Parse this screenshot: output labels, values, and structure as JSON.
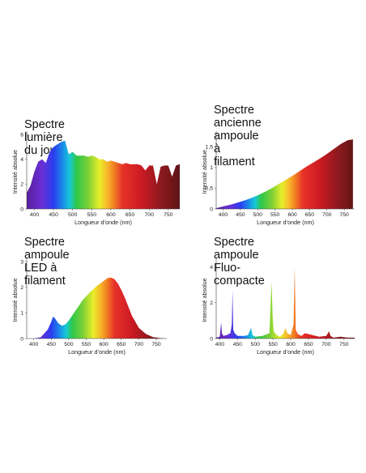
{
  "chart_data": [
    {
      "type": "area",
      "title": "Spectre lumière du jour",
      "xlabel": "Longueur d’onde (nm)",
      "ylabel": "Intensité absolue",
      "xlim": [
        380,
        780
      ],
      "ylim": [
        0,
        6
      ],
      "xticks": [
        "400",
        "450",
        "500",
        "550",
        "600",
        "650",
        "700",
        "750"
      ],
      "yticks": [
        "0",
        "2",
        "4",
        "6"
      ],
      "x": [
        380,
        390,
        400,
        410,
        420,
        430,
        440,
        450,
        460,
        470,
        480,
        490,
        500,
        510,
        520,
        530,
        540,
        550,
        560,
        570,
        580,
        590,
        600,
        610,
        620,
        630,
        640,
        650,
        660,
        670,
        680,
        690,
        700,
        710,
        720,
        730,
        740,
        750,
        760,
        770,
        780
      ],
      "values": [
        1.3,
        1.9,
        3.0,
        3.8,
        4.0,
        3.7,
        4.6,
        5.0,
        5.2,
        5.4,
        5.5,
        4.4,
        4.6,
        4.3,
        4.3,
        4.3,
        4.2,
        4.3,
        4.2,
        4.0,
        4.0,
        3.8,
        3.9,
        3.8,
        3.7,
        3.6,
        3.7,
        3.6,
        3.6,
        3.6,
        3.5,
        3.1,
        3.5,
        3.5,
        2.0,
        3.4,
        3.5,
        3.5,
        2.6,
        3.5,
        3.6
      ]
    },
    {
      "type": "area",
      "title": "Spectre ancienne ampoule\nà filament",
      "xlabel": "Longueur d’onde (nm)",
      "ylabel": "Intensité absolue",
      "xlim": [
        380,
        780
      ],
      "ylim": [
        0,
        1.8
      ],
      "xticks": [
        "400",
        "450",
        "500",
        "550",
        "600",
        "650",
        "700",
        "750"
      ],
      "yticks": [
        "0",
        "0,5",
        "1",
        "1,5"
      ],
      "x": [
        380,
        400,
        420,
        440,
        460,
        480,
        500,
        520,
        540,
        560,
        580,
        600,
        620,
        640,
        660,
        680,
        700,
        720,
        740,
        760,
        775
      ],
      "values": [
        0.02,
        0.06,
        0.1,
        0.15,
        0.2,
        0.26,
        0.33,
        0.41,
        0.5,
        0.6,
        0.7,
        0.8,
        0.91,
        1.02,
        1.12,
        1.22,
        1.33,
        1.45,
        1.57,
        1.66,
        1.68
      ]
    },
    {
      "type": "area",
      "title": "Spectre ampoule\nLED à filament",
      "xlabel": "Longueur d’onde (nm)",
      "ylabel": "Intensité absolue",
      "xlim": [
        380,
        780
      ],
      "ylim": [
        0,
        3
      ],
      "xticks": [
        "400",
        "450",
        "500",
        "550",
        "600",
        "650",
        "700",
        "750"
      ],
      "yticks": [
        "0",
        "1",
        "2",
        "3"
      ],
      "x": [
        380,
        400,
        420,
        440,
        450,
        455,
        460,
        470,
        480,
        490,
        500,
        520,
        540,
        560,
        580,
        600,
        610,
        620,
        630,
        640,
        650,
        660,
        680,
        700,
        720,
        740,
        760,
        780
      ],
      "values": [
        0,
        0,
        0.05,
        0.35,
        0.65,
        0.85,
        0.8,
        0.6,
        0.5,
        0.55,
        0.7,
        1.1,
        1.5,
        1.8,
        2.05,
        2.25,
        2.35,
        2.38,
        2.32,
        2.15,
        1.9,
        1.6,
        0.9,
        0.42,
        0.18,
        0.06,
        0.02,
        0
      ]
    },
    {
      "type": "area",
      "title": "Spectre ampoule\nFluo-compacte",
      "xlabel": "Longueur d’onde (nm)",
      "ylabel": "Intensité absolue",
      "xlim": [
        390,
        780
      ],
      "ylim": [
        0,
        4.3
      ],
      "xticks": [
        "400",
        "450",
        "500",
        "550",
        "600",
        "650",
        "700",
        "750"
      ],
      "yticks": [
        "0",
        "2",
        "4"
      ],
      "x": [
        390,
        400,
        404,
        406,
        410,
        420,
        430,
        434,
        436,
        438,
        442,
        450,
        470,
        480,
        484,
        488,
        492,
        500,
        520,
        540,
        543,
        546,
        549,
        552,
        560,
        570,
        580,
        585,
        590,
        600,
        608,
        611,
        614,
        620,
        630,
        640,
        660,
        680,
        700,
        708,
        712,
        720,
        740,
        760,
        780
      ],
      "values": [
        0.05,
        0.1,
        0.9,
        0.3,
        0.15,
        0.2,
        0.3,
        0.8,
        2.7,
        0.5,
        0.3,
        0.15,
        0.15,
        0.2,
        0.4,
        0.6,
        0.2,
        0.1,
        0.15,
        0.3,
        1.8,
        3.2,
        1.2,
        0.4,
        0.2,
        0.1,
        0.3,
        0.6,
        0.3,
        0.2,
        0.8,
        4.0,
        0.5,
        0.25,
        0.15,
        0.3,
        0.2,
        0.1,
        0.15,
        0.4,
        0.15,
        0.05,
        0.1,
        0.05,
        0.05
      ]
    }
  ]
}
